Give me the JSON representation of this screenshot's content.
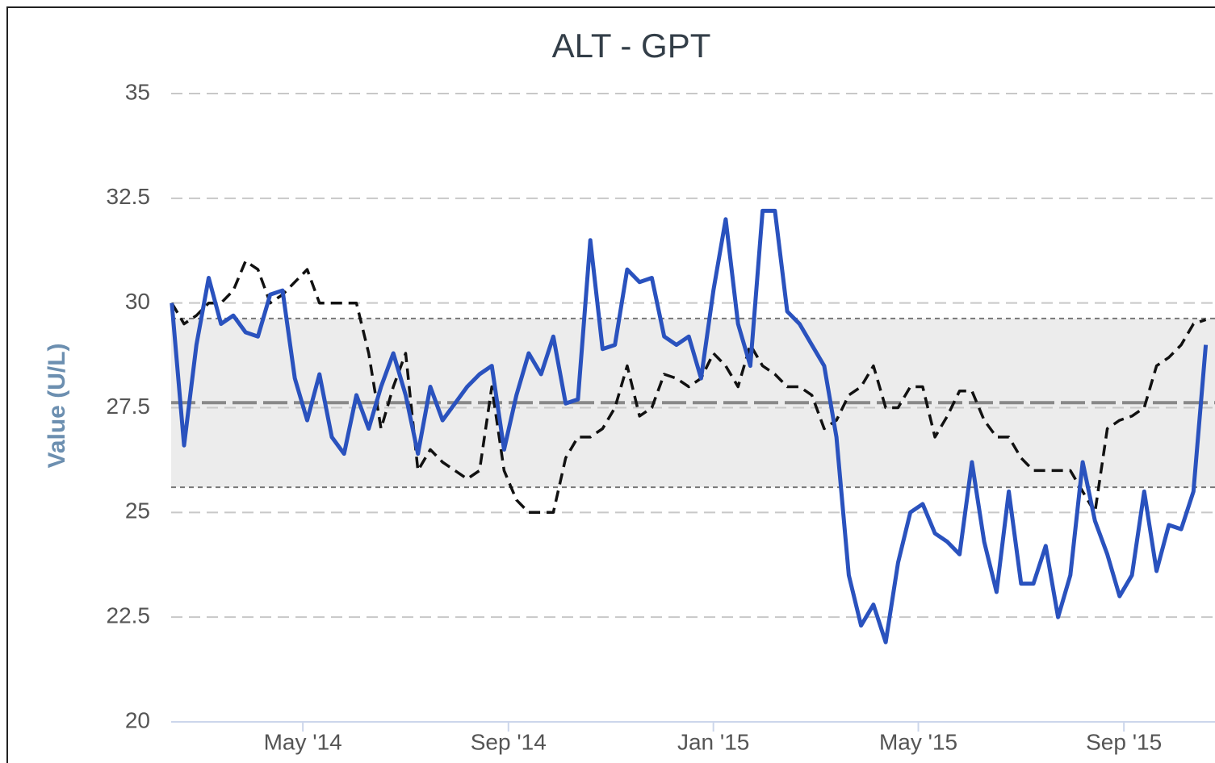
{
  "chart_data": {
    "type": "line",
    "title": "ALT - GPT",
    "y_label": "Value (U/L)",
    "ylim": [
      20,
      35
    ],
    "yticks": [
      20,
      22.5,
      25,
      27.5,
      30,
      32.5,
      35
    ],
    "xlim": [
      2014.119,
      2015.815
    ],
    "xticks": [
      {
        "value": 2014.333,
        "label": "May '14"
      },
      {
        "value": 2014.667,
        "label": "Sep '14"
      },
      {
        "value": 2015.0,
        "label": "Jan '15"
      },
      {
        "value": 2015.333,
        "label": "May '15"
      },
      {
        "value": 2015.667,
        "label": "Sep '15"
      }
    ],
    "grid": true,
    "reference_band": [
      25.6,
      29.63
    ],
    "reference_line": 27.62,
    "x": [
      2014.12,
      2014.14,
      2014.16,
      2014.18,
      2014.2,
      2014.22,
      2014.24,
      2014.26,
      2014.28,
      2014.3,
      2014.32,
      2014.34,
      2014.36,
      2014.38,
      2014.4,
      2014.42,
      2014.44,
      2014.46,
      2014.48,
      2014.5,
      2014.52,
      2014.54,
      2014.56,
      2014.58,
      2014.6,
      2014.62,
      2014.64,
      2014.66,
      2014.68,
      2014.7,
      2014.72,
      2014.74,
      2014.76,
      2014.78,
      2014.8,
      2014.82,
      2014.84,
      2014.86,
      2014.88,
      2014.9,
      2014.92,
      2014.94,
      2014.96,
      2014.98,
      2015.0,
      2015.02,
      2015.04,
      2015.06,
      2015.08,
      2015.1,
      2015.12,
      2015.14,
      2015.16,
      2015.18,
      2015.2,
      2015.22,
      2015.24,
      2015.26,
      2015.28,
      2015.3,
      2015.32,
      2015.34,
      2015.36,
      2015.38,
      2015.4,
      2015.42,
      2015.44,
      2015.46,
      2015.48,
      2015.5,
      2015.52,
      2015.54,
      2015.56,
      2015.58,
      2015.6,
      2015.62,
      2015.64,
      2015.66,
      2015.68,
      2015.7,
      2015.72,
      2015.74,
      2015.76,
      2015.78,
      2015.8
    ],
    "series": [
      {
        "color": "#2a52be",
        "style": "solid",
        "values": [
          30,
          26.6,
          29,
          30.6,
          29.5,
          29.7,
          29.3,
          29.2,
          30.2,
          30.3,
          28.2,
          27.2,
          28.3,
          26.8,
          26.4,
          27.8,
          27,
          28,
          28.8,
          27.8,
          26.4,
          28,
          27.2,
          27.6,
          28,
          28.3,
          28.5,
          26.5,
          27.8,
          28.8,
          28.3,
          29.2,
          27.6,
          27.7,
          31.5,
          28.9,
          29,
          30.8,
          30.5,
          30.6,
          29.2,
          29,
          29.2,
          28.2,
          30.3,
          32,
          29.5,
          28.5,
          32.2,
          32.2,
          29.8,
          29.5,
          29,
          28.5,
          26.8,
          23.5,
          22.3,
          22.8,
          21.9,
          23.8,
          25,
          25.2,
          24.5,
          24.3,
          24,
          26.2,
          24.3,
          23.1,
          25.5,
          23.3,
          23.3,
          24.2,
          22.5,
          23.5,
          26.2,
          24.8,
          24,
          23,
          23.5,
          25.5,
          23.6,
          24.7,
          24.6,
          25.5,
          29
        ]
      },
      {
        "color": "#111111",
        "style": "dashed",
        "values": [
          30,
          29.5,
          29.7,
          30,
          30,
          30.3,
          31,
          30.8,
          30,
          30.2,
          30.5,
          30.8,
          30,
          30,
          30,
          30,
          28.8,
          27,
          28,
          28.8,
          26,
          26.5,
          26.2,
          26,
          25.8,
          26,
          28,
          26,
          25.3,
          25,
          25,
          25,
          26.3,
          26.8,
          26.8,
          27,
          27.5,
          28.5,
          27.3,
          27.5,
          28.3,
          28.2,
          28,
          28.2,
          28.8,
          28.5,
          28,
          29,
          28.5,
          28.3,
          28,
          28,
          27.8,
          27,
          27.2,
          27.8,
          28,
          28.5,
          27.5,
          27.5,
          28,
          28,
          26.8,
          27.3,
          27.9,
          27.9,
          27.2,
          26.8,
          26.8,
          26.3,
          26,
          26,
          26,
          26,
          25.5,
          25,
          27,
          27.2,
          27.3,
          27.5,
          28.5,
          28.7,
          29,
          29.5,
          29.6
        ]
      }
    ]
  }
}
